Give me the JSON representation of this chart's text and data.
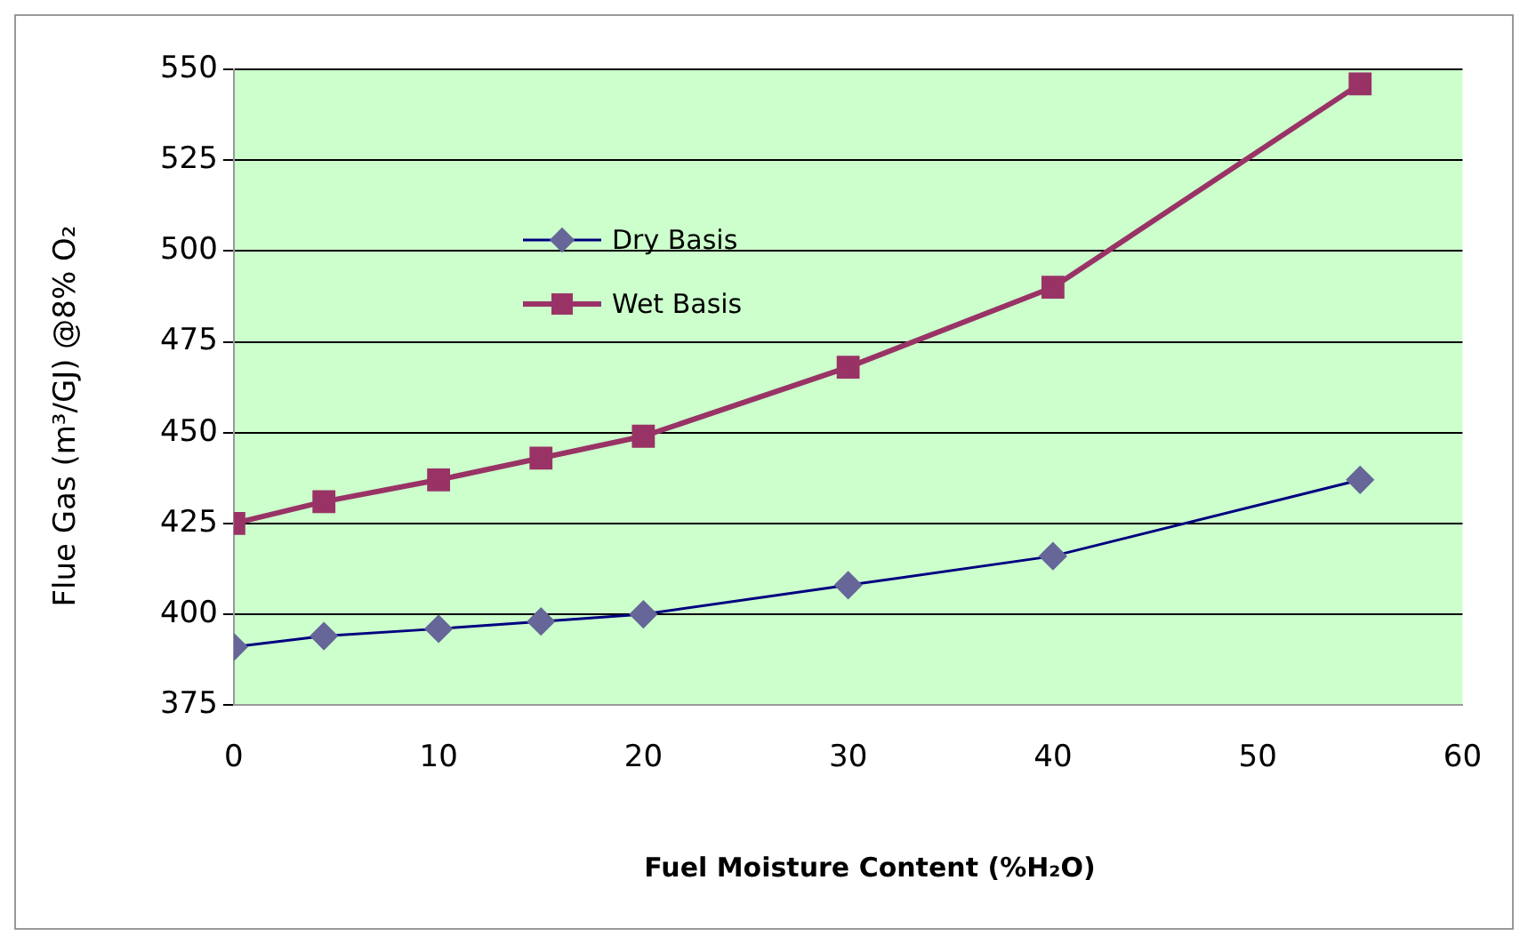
{
  "chart_data": {
    "type": "line",
    "xlabel": "Fuel Moisture Content (%H₂O)",
    "ylabel": "Flue Gas (m³/GJ) @8% O₂",
    "xlim": [
      0,
      60
    ],
    "xticks": [
      0,
      10,
      20,
      30,
      40,
      50,
      60
    ],
    "ylim": [
      375,
      550
    ],
    "yticks": [
      375,
      400,
      425,
      450,
      475,
      500,
      525,
      550
    ],
    "grid": "y",
    "legend": "top left",
    "series": [
      {
        "name": "Dry Basis",
        "color": "#000080",
        "marker": "diamond",
        "x": [
          0,
          4.4,
          10,
          15,
          20,
          30,
          40,
          55
        ],
        "values": [
          391,
          394,
          396,
          398,
          400,
          408,
          416,
          437
        ]
      },
      {
        "name": "Wet Basis",
        "color": "#993366",
        "marker": "square",
        "x": [
          0,
          4.4,
          10,
          15,
          20,
          30,
          40,
          55
        ],
        "values": [
          425,
          431,
          437,
          443,
          449,
          468,
          490,
          546
        ]
      }
    ]
  }
}
